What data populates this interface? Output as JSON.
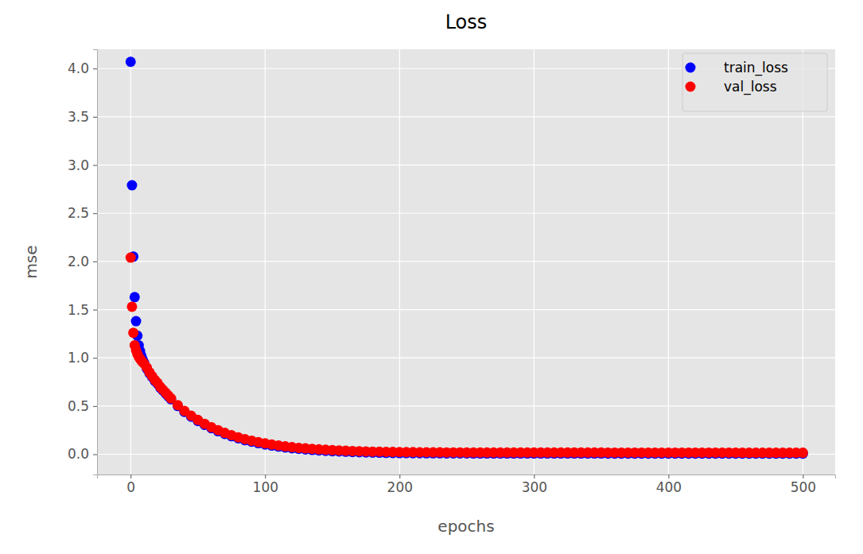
{
  "chart_data": {
    "type": "scatter",
    "title": "Loss",
    "x_label": "epochs",
    "y_label": "mse",
    "x": [
      0,
      1,
      2,
      3,
      4,
      5,
      6,
      7,
      8,
      9,
      10,
      12,
      14,
      16,
      18,
      20,
      22,
      24,
      26,
      28,
      30,
      35,
      40,
      45,
      50,
      55,
      60,
      65,
      70,
      75,
      80,
      85,
      90,
      95,
      100,
      105,
      110,
      115,
      120,
      125,
      130,
      135,
      140,
      145,
      150,
      155,
      160,
      165,
      170,
      175,
      180,
      185,
      190,
      195,
      200,
      205,
      210,
      215,
      220,
      225,
      230,
      235,
      240,
      245,
      250,
      255,
      260,
      265,
      270,
      275,
      280,
      285,
      290,
      295,
      300,
      305,
      310,
      315,
      320,
      325,
      330,
      335,
      340,
      345,
      350,
      355,
      360,
      365,
      370,
      375,
      380,
      385,
      390,
      395,
      400,
      405,
      410,
      415,
      420,
      425,
      430,
      435,
      440,
      445,
      450,
      455,
      460,
      465,
      470,
      475,
      480,
      485,
      490,
      495,
      500
    ],
    "series": [
      {
        "name": "train_loss",
        "color": "#0000ff",
        "values": [
          4.07,
          2.79,
          2.05,
          1.63,
          1.38,
          1.23,
          1.13,
          1.07,
          1.02,
          0.98,
          0.95,
          0.89,
          0.84,
          0.8,
          0.76,
          0.73,
          0.69,
          0.66,
          0.63,
          0.6,
          0.57,
          0.5,
          0.44,
          0.39,
          0.345,
          0.305,
          0.27,
          0.239,
          0.211,
          0.187,
          0.165,
          0.146,
          0.13,
          0.115,
          0.102,
          0.09,
          0.08,
          0.071,
          0.063,
          0.056,
          0.05,
          0.045,
          0.04,
          0.036,
          0.032,
          0.029,
          0.026,
          0.023,
          0.021,
          0.019,
          0.017,
          0.016,
          0.014,
          0.013,
          0.012,
          0.012,
          0.011,
          0.011,
          0.01,
          0.01,
          0.01,
          0.009,
          0.009,
          0.009,
          0.009,
          0.008,
          0.008,
          0.008,
          0.008,
          0.008,
          0.008,
          0.008,
          0.008,
          0.008,
          0.008,
          0.008,
          0.008,
          0.008,
          0.008,
          0.008,
          0.008,
          0.008,
          0.008,
          0.008,
          0.008,
          0.007,
          0.007,
          0.007,
          0.007,
          0.007,
          0.007,
          0.007,
          0.007,
          0.007,
          0.007,
          0.007,
          0.007,
          0.007,
          0.007,
          0.007,
          0.007,
          0.007,
          0.007,
          0.007,
          0.007,
          0.007,
          0.007,
          0.007,
          0.007,
          0.007,
          0.007,
          0.007,
          0.007,
          0.007,
          0.007
        ]
      },
      {
        "name": "val_loss",
        "color": "#ff0000",
        "values": [
          2.04,
          1.53,
          1.26,
          1.13,
          1.08,
          1.04,
          1.01,
          0.99,
          0.97,
          0.955,
          0.94,
          0.9,
          0.85,
          0.81,
          0.77,
          0.74,
          0.7,
          0.67,
          0.64,
          0.61,
          0.58,
          0.51,
          0.45,
          0.4,
          0.356,
          0.316,
          0.281,
          0.25,
          0.222,
          0.198,
          0.176,
          0.157,
          0.141,
          0.126,
          0.113,
          0.101,
          0.091,
          0.082,
          0.074,
          0.067,
          0.061,
          0.056,
          0.051,
          0.047,
          0.043,
          0.04,
          0.037,
          0.034,
          0.032,
          0.03,
          0.028,
          0.027,
          0.025,
          0.024,
          0.023,
          0.022,
          0.022,
          0.021,
          0.021,
          0.02,
          0.02,
          0.019,
          0.019,
          0.019,
          0.018,
          0.018,
          0.018,
          0.018,
          0.018,
          0.018,
          0.018,
          0.018,
          0.018,
          0.018,
          0.018,
          0.018,
          0.018,
          0.018,
          0.018,
          0.018,
          0.018,
          0.018,
          0.018,
          0.018,
          0.018,
          0.017,
          0.017,
          0.017,
          0.017,
          0.017,
          0.017,
          0.017,
          0.017,
          0.017,
          0.017,
          0.017,
          0.017,
          0.017,
          0.017,
          0.017,
          0.017,
          0.017,
          0.017,
          0.017,
          0.017,
          0.016,
          0.016,
          0.016,
          0.016,
          0.016,
          0.016,
          0.016,
          0.016,
          0.016,
          0.016
        ]
      }
    ],
    "xlim": [
      -25,
      524
    ],
    "ylim": [
      -0.21,
      4.2
    ],
    "xticks": [
      0,
      100,
      200,
      300,
      400,
      500
    ],
    "yticks": [
      {
        "value": 0,
        "label": "0.0"
      },
      0.5,
      {
        "value": 1,
        "label": "1.0"
      },
      1.5,
      {
        "value": 2,
        "label": "2.0"
      },
      2.5,
      {
        "value": 3,
        "label": "3.0"
      },
      3.5,
      {
        "value": 4,
        "label": "4.0"
      }
    ],
    "grid": true,
    "legend": "upper right"
  }
}
